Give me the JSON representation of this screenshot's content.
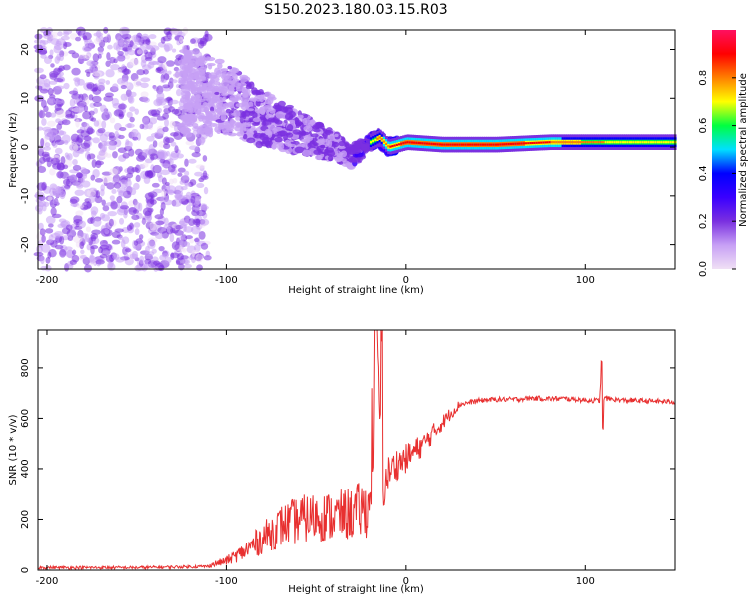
{
  "figure_title": "S150.2023.180.03.15.R03",
  "chart_data": [
    {
      "type": "heatmap",
      "xlabel": "Height of straight line (km)",
      "ylabel": "Frequency (Hz)",
      "xlim": [
        -205,
        150
      ],
      "ylim": [
        -25,
        24
      ],
      "x_ticks": [
        -200,
        -100,
        0,
        100
      ],
      "y_ticks": [
        -20,
        -10,
        0,
        10,
        20
      ],
      "colorbar": {
        "label": "Normalized spectral amplitude",
        "range": [
          0,
          1
        ],
        "ticks": [
          0.0,
          0.2,
          0.4,
          0.6,
          0.8
        ],
        "colormap": [
          "#f0e0f5",
          "#c7a0f5",
          "#7a30e0",
          "#3a00ff",
          "#0000ff",
          "#00e0ff",
          "#00ff40",
          "#ffff00",
          "#ff8000",
          "#ff0000",
          "#ff1060"
        ]
      },
      "ridge": {
        "x": [
          -120,
          -100,
          -80,
          -60,
          -40,
          -30,
          -20,
          -15,
          -10,
          0,
          20,
          50,
          80,
          100,
          110,
          150
        ],
        "frequency": [
          11,
          10,
          6,
          3,
          0,
          -2,
          1,
          2,
          0,
          1,
          0.5,
          0.5,
          1,
          1,
          1,
          1
        ],
        "amplitude": [
          0.25,
          0.35,
          0.4,
          0.45,
          0.45,
          0.5,
          0.7,
          0.8,
          0.85,
          0.9,
          0.95,
          0.92,
          0.85,
          0.75,
          0.75,
          0.7
        ]
      }
    },
    {
      "type": "line",
      "xlabel": "Height of straight line (km)",
      "ylabel": "SNR (10 * v/v)",
      "xlim": [
        -205,
        150
      ],
      "ylim": [
        0,
        950
      ],
      "x_ticks": [
        -200,
        -100,
        0,
        100
      ],
      "y_ticks": [
        0,
        200,
        400,
        600,
        800
      ],
      "series": [
        {
          "color": "#e83030",
          "x": [
            -205,
            -150,
            -110,
            -100,
            -90,
            -80,
            -70,
            -60,
            -50,
            -40,
            -30,
            -20,
            -16,
            -13,
            -10,
            -5,
            0,
            5,
            10,
            15,
            20,
            25,
            30,
            40,
            50,
            60,
            70,
            80,
            90,
            100,
            108,
            109,
            110,
            120,
            130,
            140,
            150
          ],
          "y": [
            10,
            10,
            15,
            30,
            60,
            100,
            140,
            160,
            170,
            170,
            180,
            200,
            900,
            300,
            380,
            420,
            440,
            470,
            500,
            540,
            580,
            620,
            655,
            670,
            675,
            675,
            680,
            678,
            678,
            672,
            670,
            800,
            680,
            672,
            670,
            668,
            665
          ]
        }
      ]
    }
  ]
}
